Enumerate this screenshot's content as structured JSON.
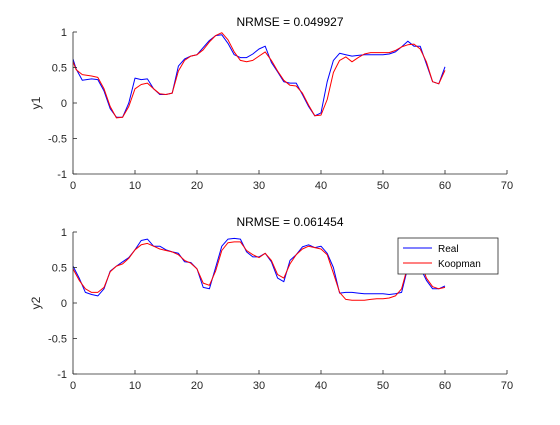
{
  "chart_data": [
    {
      "type": "line",
      "title": "NRMSE = 0.049927",
      "xlabel": "",
      "ylabel": "y1",
      "xlim": [
        0,
        70
      ],
      "ylim": [
        -1,
        1
      ],
      "xticks": [
        "0",
        "10",
        "20",
        "30",
        "40",
        "50",
        "60",
        "70"
      ],
      "yticks": [
        "-1",
        "-0.5",
        "0",
        "0.5",
        "1"
      ],
      "grid": false,
      "series": [
        {
          "name": "Real",
          "color": "#0000ff",
          "x": [
            0,
            0.5,
            1.5,
            3,
            4,
            5,
            6,
            7,
            8,
            9,
            10,
            11,
            12,
            13,
            14,
            15,
            16,
            17,
            18,
            19,
            20,
            21,
            22,
            23,
            24,
            25,
            26,
            27,
            28,
            29,
            30,
            31,
            32,
            33,
            34,
            35,
            36,
            37,
            38,
            39,
            40,
            41,
            42,
            43,
            44,
            45,
            46,
            47,
            48,
            49,
            50,
            51,
            52,
            53,
            54,
            55,
            56,
            57,
            58,
            59,
            60
          ],
          "y": [
            0.62,
            0.48,
            0.32,
            0.34,
            0.33,
            0.17,
            -0.08,
            -0.2,
            -0.2,
            0.0,
            0.35,
            0.33,
            0.34,
            0.2,
            0.12,
            0.12,
            0.14,
            0.52,
            0.62,
            0.66,
            0.68,
            0.78,
            0.88,
            0.95,
            0.96,
            0.84,
            0.68,
            0.64,
            0.64,
            0.69,
            0.76,
            0.8,
            0.57,
            0.44,
            0.3,
            0.28,
            0.28,
            0.12,
            -0.05,
            -0.18,
            -0.14,
            0.3,
            0.6,
            0.7,
            0.68,
            0.66,
            0.67,
            0.68,
            0.68,
            0.68,
            0.68,
            0.69,
            0.72,
            0.79,
            0.87,
            0.8,
            0.8,
            0.55,
            0.3,
            0.27,
            0.51
          ]
        },
        {
          "name": "Koopman",
          "color": "#ff0000",
          "x": [
            0,
            0.5,
            1.5,
            3,
            4,
            5,
            6,
            7,
            8,
            9,
            10,
            11,
            12,
            13,
            14,
            15,
            16,
            17,
            18,
            19,
            20,
            21,
            22,
            23,
            24,
            25,
            26,
            27,
            28,
            29,
            30,
            31,
            32,
            33,
            34,
            35,
            36,
            37,
            38,
            39,
            40,
            41,
            42,
            43,
            44,
            45,
            46,
            47,
            48,
            49,
            50,
            51,
            52,
            53,
            54,
            55,
            56,
            57,
            58,
            59,
            60
          ],
          "y": [
            0.58,
            0.47,
            0.4,
            0.38,
            0.36,
            0.2,
            -0.05,
            -0.21,
            -0.2,
            -0.05,
            0.2,
            0.26,
            0.28,
            0.2,
            0.13,
            0.12,
            0.14,
            0.45,
            0.6,
            0.66,
            0.68,
            0.75,
            0.86,
            0.95,
            0.99,
            0.89,
            0.72,
            0.6,
            0.58,
            0.6,
            0.66,
            0.72,
            0.6,
            0.45,
            0.32,
            0.25,
            0.24,
            0.14,
            -0.03,
            -0.18,
            -0.17,
            0.05,
            0.43,
            0.6,
            0.65,
            0.58,
            0.64,
            0.69,
            0.71,
            0.71,
            0.71,
            0.71,
            0.74,
            0.79,
            0.82,
            0.83,
            0.76,
            0.58,
            0.3,
            0.27,
            0.46
          ]
        }
      ]
    },
    {
      "type": "line",
      "title": "NRMSE = 0.061454",
      "xlabel": "",
      "ylabel": "y2",
      "xlim": [
        0,
        70
      ],
      "ylim": [
        -1,
        1
      ],
      "xticks": [
        "0",
        "10",
        "20",
        "30",
        "40",
        "50",
        "60",
        "70"
      ],
      "yticks": [
        "-1",
        "-0.5",
        "0",
        "0.5",
        "1"
      ],
      "grid": false,
      "legend": {
        "position": "top-right",
        "entries": [
          "Real",
          "Koopman"
        ]
      },
      "series": [
        {
          "name": "Real",
          "color": "#0000ff",
          "x": [
            0,
            1,
            2,
            3,
            4,
            5,
            6,
            7,
            8,
            9,
            10,
            11,
            12,
            13,
            14,
            15,
            16,
            17,
            18,
            19,
            20,
            21,
            22,
            23,
            24,
            25,
            26,
            27,
            28,
            29,
            30,
            31,
            32,
            33,
            34,
            35,
            36,
            37,
            38,
            39,
            40,
            41,
            42,
            43,
            44,
            45,
            46,
            47,
            48,
            49,
            50,
            51,
            52,
            53,
            54,
            55,
            56,
            57,
            58,
            59,
            60
          ],
          "y": [
            0.52,
            0.35,
            0.15,
            0.12,
            0.1,
            0.2,
            0.45,
            0.52,
            0.58,
            0.64,
            0.75,
            0.88,
            0.9,
            0.8,
            0.8,
            0.75,
            0.72,
            0.7,
            0.58,
            0.57,
            0.48,
            0.22,
            0.2,
            0.5,
            0.8,
            0.9,
            0.91,
            0.9,
            0.72,
            0.65,
            0.65,
            0.7,
            0.58,
            0.35,
            0.3,
            0.6,
            0.68,
            0.79,
            0.82,
            0.78,
            0.8,
            0.7,
            0.5,
            0.14,
            0.15,
            0.15,
            0.14,
            0.13,
            0.13,
            0.13,
            0.13,
            0.12,
            0.13,
            0.15,
            0.5,
            0.65,
            0.5,
            0.32,
            0.2,
            0.2,
            0.24
          ]
        },
        {
          "name": "Koopman",
          "color": "#ff0000",
          "x": [
            0,
            1,
            2,
            3,
            4,
            5,
            6,
            7,
            8,
            9,
            10,
            11,
            12,
            13,
            14,
            15,
            16,
            17,
            18,
            19,
            20,
            21,
            22,
            23,
            24,
            25,
            26,
            27,
            28,
            29,
            30,
            31,
            32,
            33,
            34,
            35,
            36,
            37,
            38,
            39,
            40,
            41,
            42,
            43,
            44,
            45,
            46,
            47,
            48,
            49,
            50,
            51,
            52,
            53,
            54,
            55,
            56,
            57,
            58,
            59,
            60
          ],
          "y": [
            0.48,
            0.32,
            0.2,
            0.15,
            0.15,
            0.22,
            0.44,
            0.52,
            0.55,
            0.63,
            0.75,
            0.82,
            0.84,
            0.8,
            0.76,
            0.74,
            0.72,
            0.68,
            0.6,
            0.56,
            0.48,
            0.28,
            0.25,
            0.45,
            0.74,
            0.85,
            0.86,
            0.86,
            0.74,
            0.68,
            0.64,
            0.7,
            0.6,
            0.4,
            0.35,
            0.55,
            0.68,
            0.76,
            0.8,
            0.78,
            0.76,
            0.68,
            0.42,
            0.15,
            0.05,
            0.04,
            0.04,
            0.04,
            0.05,
            0.06,
            0.06,
            0.07,
            0.1,
            0.2,
            0.52,
            0.68,
            0.6,
            0.35,
            0.23,
            0.2,
            0.22
          ]
        }
      ]
    }
  ]
}
